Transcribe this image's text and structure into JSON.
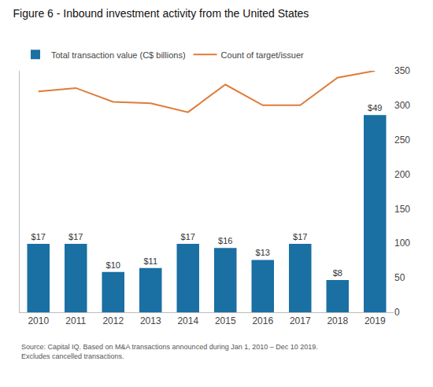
{
  "chart_data": {
    "type": "bar",
    "title": "Figure 6 - Inbound investment activity from the United States",
    "annotations": [
      "Source: Capital IQ. Based on M&A transactions announced during Jan 1, 2010 – Dec 10 2019.\nExcludes cancelled transactions."
    ],
    "categories": [
      "2010",
      "2011",
      "2012",
      "2013",
      "2014",
      "2015",
      "2016",
      "2017",
      "2018",
      "2019"
    ],
    "series": [
      {
        "name": "Total transaction value (C$ billions)",
        "type": "bar",
        "color": "#1A6FA3",
        "values": [
          17,
          17,
          10,
          11,
          17,
          16,
          13,
          17,
          8,
          49
        ],
        "value_labels": [
          "$17",
          "$17",
          "$10",
          "$11",
          "$17",
          "$16",
          "$13",
          "$17",
          "$8",
          "$49"
        ]
      },
      {
        "name": "Count of target/issuer",
        "type": "line",
        "color": "#E07B39",
        "axis": "y2",
        "values": [
          320,
          325,
          305,
          303,
          290,
          330,
          300,
          300,
          340,
          350
        ]
      }
    ],
    "ylim": [
      0,
      60
    ],
    "yticks": [],
    "y2lim": [
      0,
      350
    ],
    "y2ticks": [
      0,
      50,
      100,
      150,
      200,
      250,
      300,
      350
    ],
    "data_labels": true,
    "grid": false,
    "legend": "upper left"
  }
}
